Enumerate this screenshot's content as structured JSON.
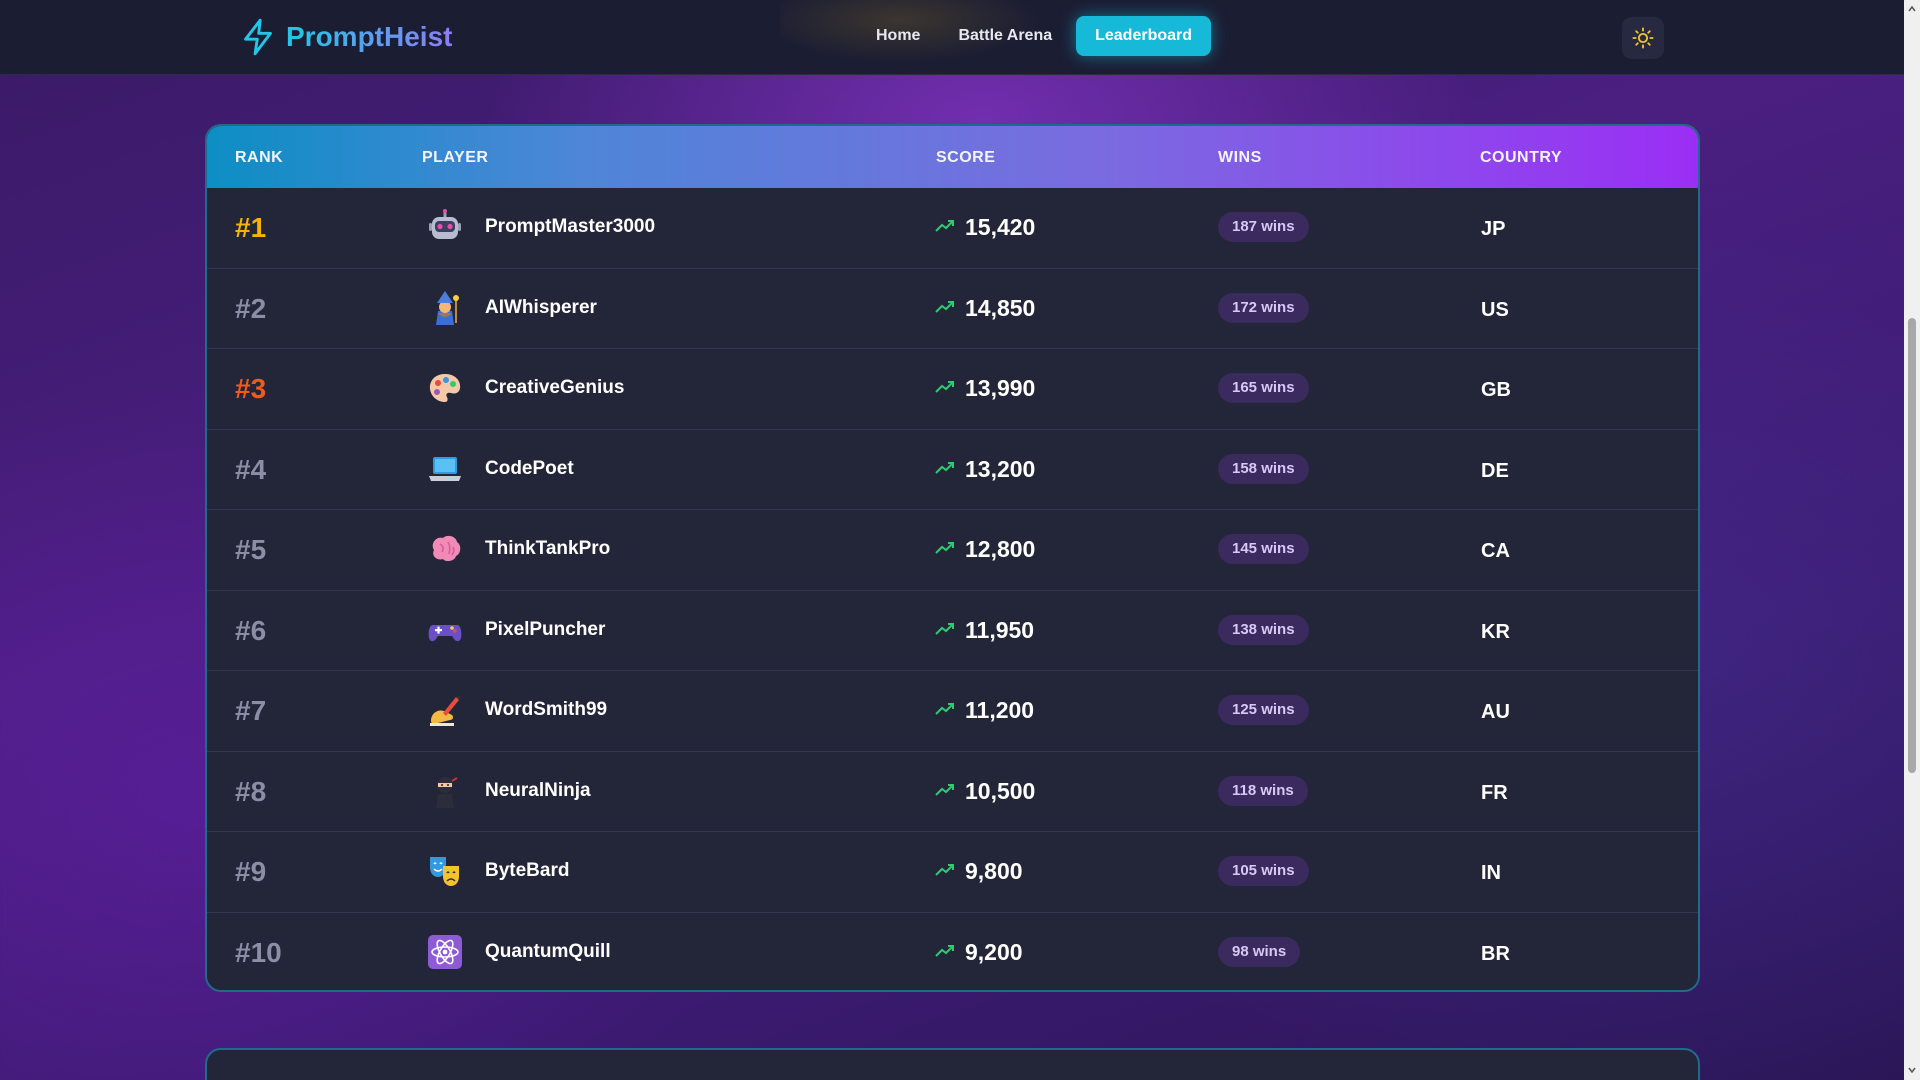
{
  "header": {
    "brand": "PromptHeist",
    "nav": [
      {
        "label": "Home",
        "active": false
      },
      {
        "label": "Battle Arena",
        "active": false
      },
      {
        "label": "Leaderboard",
        "active": true
      }
    ],
    "theme_icon": "sun-icon"
  },
  "leaderboard": {
    "columns": [
      "RANK",
      "PLAYER",
      "SCORE",
      "WINS",
      "COUNTRY"
    ],
    "rows": [
      {
        "rank": "#1",
        "player": "PromptMaster3000",
        "avatar": "robot-icon",
        "score": "15,420",
        "wins": "187 wins",
        "country": "JP"
      },
      {
        "rank": "#2",
        "player": "AIWhisperer",
        "avatar": "mage-icon",
        "score": "14,850",
        "wins": "172 wins",
        "country": "US"
      },
      {
        "rank": "#3",
        "player": "CreativeGenius",
        "avatar": "palette-icon",
        "score": "13,990",
        "wins": "165 wins",
        "country": "GB"
      },
      {
        "rank": "#4",
        "player": "CodePoet",
        "avatar": "laptop-icon",
        "score": "13,200",
        "wins": "158 wins",
        "country": "DE"
      },
      {
        "rank": "#5",
        "player": "ThinkTankPro",
        "avatar": "brain-icon",
        "score": "12,800",
        "wins": "145 wins",
        "country": "CA"
      },
      {
        "rank": "#6",
        "player": "PixelPuncher",
        "avatar": "gamepad-icon",
        "score": "11,950",
        "wins": "138 wins",
        "country": "KR"
      },
      {
        "rank": "#7",
        "player": "WordSmith99",
        "avatar": "writing-hand-icon",
        "score": "11,200",
        "wins": "125 wins",
        "country": "AU"
      },
      {
        "rank": "#8",
        "player": "NeuralNinja",
        "avatar": "ninja-icon",
        "score": "10,500",
        "wins": "118 wins",
        "country": "FR"
      },
      {
        "rank": "#9",
        "player": "ByteBard",
        "avatar": "theater-masks-icon",
        "score": "9,800",
        "wins": "105 wins",
        "country": "IN"
      },
      {
        "rank": "#10",
        "player": "QuantumQuill",
        "avatar": "atom-icon",
        "score": "9,200",
        "wins": "98 wins",
        "country": "BR"
      }
    ]
  },
  "colors": {
    "accent": "#16b9d8",
    "gold": "#f4b400",
    "bronze": "#f25a1c",
    "trend_up": "#2ecc71"
  }
}
